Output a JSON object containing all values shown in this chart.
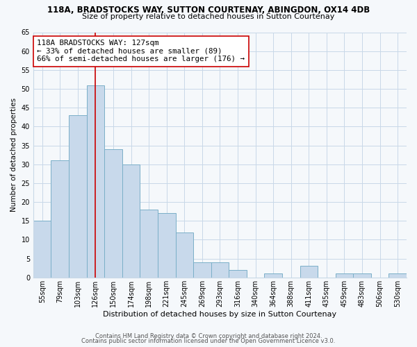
{
  "title_line1": "118A, BRADSTOCKS WAY, SUTTON COURTENAY, ABINGDON, OX14 4DB",
  "title_line2": "Size of property relative to detached houses in Sutton Courtenay",
  "xlabel": "Distribution of detached houses by size in Sutton Courtenay",
  "ylabel": "Number of detached properties",
  "bar_labels": [
    "55sqm",
    "79sqm",
    "103sqm",
    "126sqm",
    "150sqm",
    "174sqm",
    "198sqm",
    "221sqm",
    "245sqm",
    "269sqm",
    "293sqm",
    "316sqm",
    "340sqm",
    "364sqm",
    "388sqm",
    "411sqm",
    "435sqm",
    "459sqm",
    "483sqm",
    "506sqm",
    "530sqm"
  ],
  "bar_heights": [
    15,
    31,
    43,
    51,
    34,
    30,
    18,
    17,
    12,
    4,
    4,
    2,
    0,
    1,
    0,
    3,
    0,
    1,
    1,
    0,
    1
  ],
  "bar_color": "#c8d9eb",
  "bar_edge_color": "#7aafc8",
  "vline_x_index": 3,
  "vline_color": "#cc0000",
  "annotation_text": "118A BRADSTOCKS WAY: 127sqm\n← 33% of detached houses are smaller (89)\n66% of semi-detached houses are larger (176) →",
  "annotation_box_edge": "#cc0000",
  "annotation_box_face": "#ffffff",
  "ylim": [
    0,
    65
  ],
  "yticks": [
    0,
    5,
    10,
    15,
    20,
    25,
    30,
    35,
    40,
    45,
    50,
    55,
    60,
    65
  ],
  "footer_line1": "Contains HM Land Registry data © Crown copyright and database right 2024.",
  "footer_line2": "Contains public sector information licensed under the Open Government Licence v3.0.",
  "bg_color": "#f5f8fb",
  "grid_color": "#c8d8e8",
  "title_fontsize": 8.5,
  "subtitle_fontsize": 8,
  "xlabel_fontsize": 8,
  "ylabel_fontsize": 7.5,
  "tick_fontsize": 7,
  "footer_fontsize": 6
}
